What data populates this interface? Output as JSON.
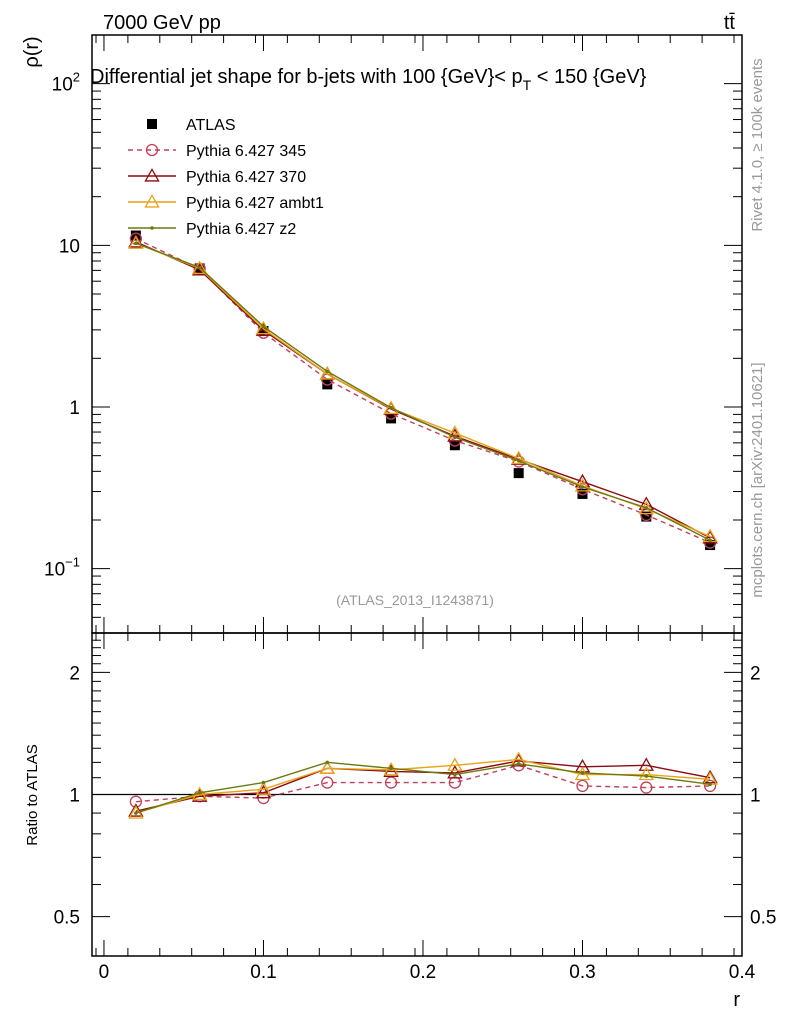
{
  "header": {
    "energy_label": "7000 GeV pp",
    "process_label": "tt̄"
  },
  "side_labels": {
    "rivet": "Rivet 4.1.0, ≥ 100k events",
    "source": "mcplots.cern.ch [arXiv:2401.10621]"
  },
  "chart_data": [
    {
      "type": "line",
      "panel": "main",
      "title": "Differential jet shape for b-jets with 100 {GeV}< p_T < 150 {GeV}",
      "title_parts": {
        "main": "Differential jet shape for b-jets with 100 {GeV}< p",
        "sub": "T",
        "tail": " < 150 {GeV}"
      },
      "ylabel": "ρ(r)",
      "yscale": "log",
      "ylim": [
        0.04,
        200
      ],
      "xlim": [
        -0.0075,
        0.4
      ],
      "y_ticks": [
        {
          "value": 0.1,
          "base": "10",
          "exp": "−1"
        },
        {
          "value": 1,
          "base": "1",
          "exp": ""
        },
        {
          "value": 10,
          "base": "10",
          "exp": ""
        },
        {
          "value": 100,
          "base": "10",
          "exp": "2"
        }
      ],
      "watermark": "(ATLAS_2013_I1243871)",
      "x": [
        0.02,
        0.06,
        0.1,
        0.14,
        0.18,
        0.22,
        0.26,
        0.3,
        0.34,
        0.38
      ],
      "series": [
        {
          "name": "ATLAS",
          "color": "#000000",
          "marker": "square",
          "dash": "none",
          "values": [
            11.5,
            7.2,
            2.95,
            1.38,
            0.85,
            0.58,
            0.39,
            0.29,
            0.21,
            0.14
          ],
          "errors": [
            0.5,
            0.3,
            0.12,
            0.06,
            0.04,
            0.03,
            0.02,
            0.015,
            0.012,
            0.008
          ]
        },
        {
          "name": "Pythia 6.427 345",
          "color": "#c0415a",
          "marker": "circle",
          "dash": "dashed",
          "values": [
            11.0,
            7.15,
            2.88,
            1.48,
            0.91,
            0.62,
            0.46,
            0.31,
            0.215,
            0.145
          ]
        },
        {
          "name": "Pythia 6.427 370",
          "color": "#8b0a14",
          "marker": "triangle",
          "dash": "none",
          "values": [
            10.5,
            7.05,
            2.98,
            1.6,
            0.97,
            0.66,
            0.475,
            0.345,
            0.25,
            0.155
          ]
        },
        {
          "name": "Pythia 6.427 ambt1",
          "color": "#e8a317",
          "marker": "triangle",
          "dash": "none",
          "values": [
            10.3,
            7.2,
            3.05,
            1.6,
            0.98,
            0.69,
            0.48,
            0.325,
            0.235,
            0.158
          ]
        },
        {
          "name": "Pythia 6.427 z2",
          "color": "#6b7a10",
          "marker": "dot",
          "dash": "none",
          "values": [
            10.3,
            7.3,
            3.15,
            1.66,
            0.99,
            0.65,
            0.465,
            0.32,
            0.238,
            0.15
          ]
        }
      ]
    },
    {
      "type": "line",
      "panel": "ratio",
      "ylabel": "Ratio to ATLAS",
      "xlabel": "r",
      "yscale": "log",
      "ylim": [
        0.4,
        2.5
      ],
      "xlim": [
        -0.0075,
        0.4
      ],
      "y_ticks": [
        {
          "value": 0.5,
          "label": "0.5"
        },
        {
          "value": 1,
          "label": "1"
        },
        {
          "value": 2,
          "label": "2"
        }
      ],
      "x_ticks": [
        {
          "value": 0,
          "label": "0"
        },
        {
          "value": 0.1,
          "label": "0.1"
        },
        {
          "value": 0.2,
          "label": "0.2"
        },
        {
          "value": 0.3,
          "label": "0.3"
        },
        {
          "value": 0.4,
          "label": "0.4"
        }
      ],
      "x": [
        0.02,
        0.06,
        0.1,
        0.14,
        0.18,
        0.22,
        0.26,
        0.3,
        0.34,
        0.38
      ],
      "series": [
        {
          "name": "Pythia 6.427 345",
          "color": "#c0415a",
          "marker": "circle",
          "dash": "dashed",
          "values": [
            0.96,
            0.99,
            0.98,
            1.07,
            1.07,
            1.07,
            1.18,
            1.05,
            1.04,
            1.05
          ]
        },
        {
          "name": "Pythia 6.427 370",
          "color": "#8b0a14",
          "marker": "triangle",
          "dash": "none",
          "values": [
            0.91,
            0.99,
            1.01,
            1.16,
            1.14,
            1.13,
            1.21,
            1.17,
            1.18,
            1.1
          ]
        },
        {
          "name": "Pythia 6.427 ambt1",
          "color": "#e8a317",
          "marker": "triangle",
          "dash": "none",
          "values": [
            0.9,
            1.0,
            1.03,
            1.16,
            1.15,
            1.18,
            1.22,
            1.12,
            1.12,
            1.09
          ]
        },
        {
          "name": "Pythia 6.427 z2",
          "color": "#6b7a10",
          "marker": "dot",
          "dash": "none",
          "values": [
            0.9,
            1.01,
            1.07,
            1.2,
            1.16,
            1.12,
            1.19,
            1.13,
            1.11,
            1.06
          ]
        }
      ]
    }
  ]
}
